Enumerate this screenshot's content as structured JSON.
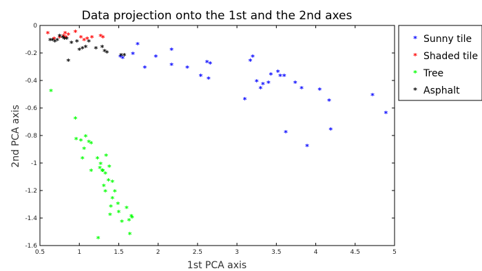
{
  "chart_data": {
    "type": "scatter",
    "title": "Data projection onto the 1st and the 2nd axes",
    "xlabel": "1st PCA axis",
    "ylabel": "2nd PCA axis",
    "xlim": [
      0.5,
      5
    ],
    "ylim": [
      -1.6,
      0
    ],
    "xticks": [
      "0.5",
      "1",
      "1.5",
      "2",
      "2.5",
      "3",
      "3.5",
      "4",
      "4.5",
      "5"
    ],
    "xtick_values": [
      0.5,
      1,
      1.5,
      2,
      2.5,
      3,
      3.5,
      4,
      4.5,
      5
    ],
    "yticks": [
      "0",
      "-0.2",
      "-0.4",
      "-0.6",
      "-0.8",
      "-1",
      "-1.2",
      "-1.4",
      "-1.6"
    ],
    "ytick_values": [
      0,
      -0.2,
      -0.4,
      -0.6,
      -0.8,
      -1,
      -1.2,
      -1.4,
      -1.6
    ],
    "grid": false,
    "legend_position": "outside-right",
    "marker": "*",
    "series": [
      {
        "name": "Sunny tile",
        "color": "#0000ff",
        "points": [
          [
            1.52,
            -0.23
          ],
          [
            1.55,
            -0.24
          ],
          [
            1.68,
            -0.21
          ],
          [
            1.74,
            -0.14
          ],
          [
            1.83,
            -0.31
          ],
          [
            1.97,
            -0.23
          ],
          [
            2.17,
            -0.18
          ],
          [
            2.17,
            -0.29
          ],
          [
            2.37,
            -0.31
          ],
          [
            2.54,
            -0.37
          ],
          [
            2.62,
            -0.27
          ],
          [
            2.64,
            -0.39
          ],
          [
            2.66,
            -0.28
          ],
          [
            3.1,
            -0.54
          ],
          [
            3.17,
            -0.26
          ],
          [
            3.2,
            -0.23
          ],
          [
            3.25,
            -0.41
          ],
          [
            3.3,
            -0.46
          ],
          [
            3.33,
            -0.43
          ],
          [
            3.4,
            -0.42
          ],
          [
            3.43,
            -0.36
          ],
          [
            3.52,
            -0.34
          ],
          [
            3.55,
            -0.37
          ],
          [
            3.6,
            -0.37
          ],
          [
            3.62,
            -0.78
          ],
          [
            3.74,
            -0.42
          ],
          [
            3.82,
            -0.46
          ],
          [
            3.89,
            -0.88
          ],
          [
            4.05,
            -0.47
          ],
          [
            4.17,
            -0.55
          ],
          [
            4.19,
            -0.76
          ],
          [
            4.72,
            -0.51
          ],
          [
            4.89,
            -0.64
          ]
        ]
      },
      {
        "name": "Shaded tile",
        "color": "#ff0000",
        "points": [
          [
            0.6,
            -0.06
          ],
          [
            0.68,
            -0.1
          ],
          [
            0.75,
            -0.09
          ],
          [
            0.8,
            -0.08
          ],
          [
            0.82,
            -0.06
          ],
          [
            0.83,
            -0.09
          ],
          [
            0.86,
            -0.07
          ],
          [
            0.95,
            -0.05
          ],
          [
            1.02,
            -0.09
          ],
          [
            1.06,
            -0.11
          ],
          [
            1.1,
            -0.1
          ],
          [
            1.16,
            -0.09
          ],
          [
            1.27,
            -0.08
          ],
          [
            1.3,
            -0.09
          ]
        ]
      },
      {
        "name": "Tree",
        "color": "#00ff00",
        "points": [
          [
            0.64,
            -0.48
          ],
          [
            0.95,
            -0.68
          ],
          [
            0.96,
            -0.83
          ],
          [
            1.02,
            -0.84
          ],
          [
            1.04,
            -0.97
          ],
          [
            1.06,
            -0.9
          ],
          [
            1.08,
            -0.81
          ],
          [
            1.12,
            -0.85
          ],
          [
            1.15,
            -0.86
          ],
          [
            1.15,
            -1.06
          ],
          [
            1.23,
            -0.97
          ],
          [
            1.24,
            -1.55
          ],
          [
            1.26,
            -1.04
          ],
          [
            1.27,
            -1.01
          ],
          [
            1.29,
            -1.06
          ],
          [
            1.3,
            -1.06
          ],
          [
            1.31,
            -1.17
          ],
          [
            1.33,
            -1.08
          ],
          [
            1.33,
            -1.21
          ],
          [
            1.34,
            -0.95
          ],
          [
            1.37,
            -1.13
          ],
          [
            1.38,
            -1.03
          ],
          [
            1.39,
            -1.38
          ],
          [
            1.4,
            -1.32
          ],
          [
            1.42,
            -1.14
          ],
          [
            1.42,
            -1.26
          ],
          [
            1.45,
            -1.21
          ],
          [
            1.49,
            -1.3
          ],
          [
            1.5,
            -1.36
          ],
          [
            1.54,
            -1.43
          ],
          [
            1.6,
            -1.33
          ],
          [
            1.63,
            -1.42
          ],
          [
            1.64,
            -1.52
          ],
          [
            1.66,
            -1.39
          ],
          [
            1.67,
            -1.4
          ]
        ]
      },
      {
        "name": "Asphalt",
        "color": "#000000",
        "points": [
          [
            0.63,
            -0.11
          ],
          [
            0.66,
            -0.11
          ],
          [
            0.69,
            -0.12
          ],
          [
            0.72,
            -0.11
          ],
          [
            0.75,
            -0.08
          ],
          [
            0.79,
            -0.09
          ],
          [
            0.81,
            -0.1
          ],
          [
            0.84,
            -0.1
          ],
          [
            0.86,
            -0.26
          ],
          [
            0.9,
            -0.13
          ],
          [
            0.97,
            -0.12
          ],
          [
            1.0,
            -0.18
          ],
          [
            1.04,
            -0.17
          ],
          [
            1.08,
            -0.16
          ],
          [
            1.12,
            -0.12
          ],
          [
            1.21,
            -0.17
          ],
          [
            1.29,
            -0.16
          ],
          [
            1.32,
            -0.19
          ],
          [
            1.35,
            -0.2
          ],
          [
            1.53,
            -0.22
          ],
          [
            1.57,
            -0.22
          ]
        ]
      }
    ]
  }
}
